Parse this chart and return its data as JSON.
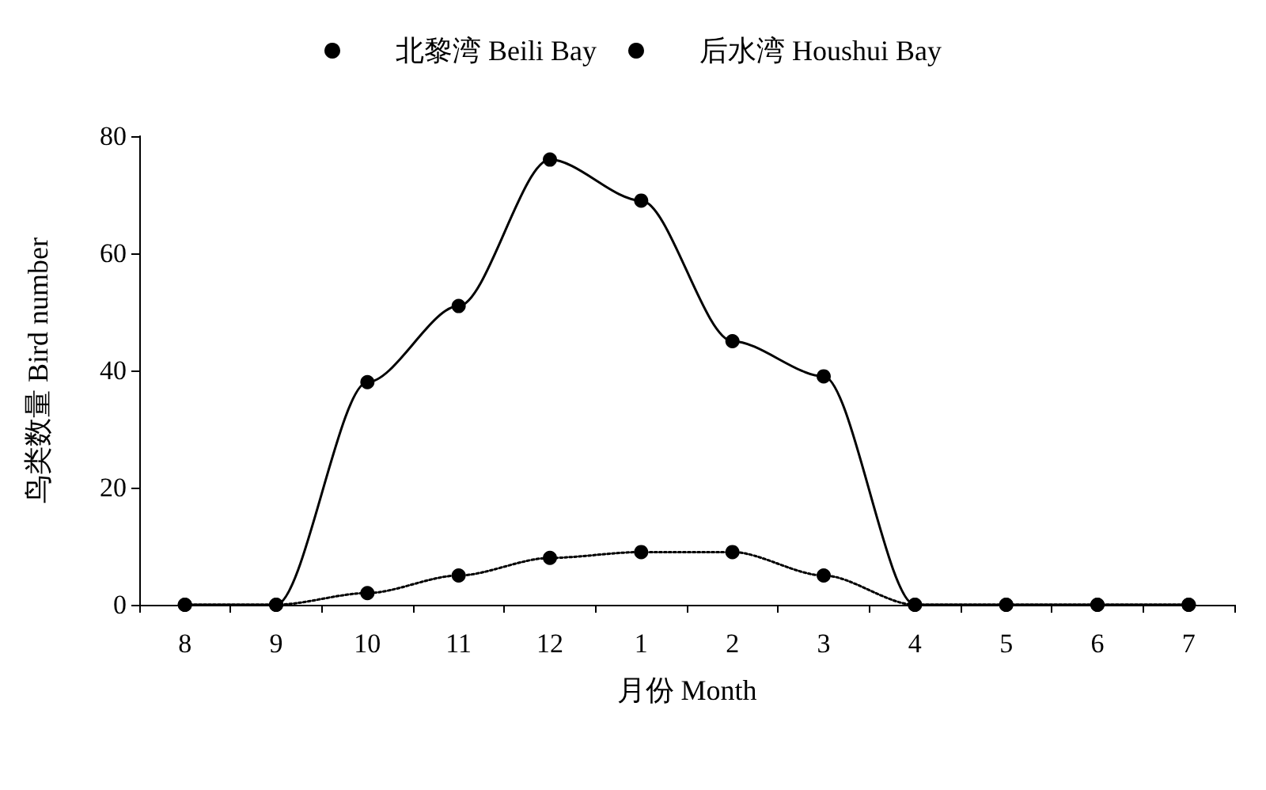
{
  "chart_data": {
    "type": "line",
    "xlabel": "月份 Month",
    "ylabel": "鸟类数量 Bird number",
    "categories": [
      "8",
      "9",
      "10",
      "11",
      "12",
      "1",
      "2",
      "3",
      "4",
      "5",
      "6",
      "7"
    ],
    "series": [
      {
        "name": "北黎湾 Beili Bay",
        "color": "#000000",
        "line_style": "solid",
        "values": [
          0,
          0,
          38,
          51,
          76,
          69,
          45,
          39,
          0,
          0,
          0,
          0
        ]
      },
      {
        "name": "后水湾 Houshui Bay",
        "color": "#000000",
        "line_style": "dotted",
        "values": [
          0,
          0,
          2,
          5,
          8,
          9,
          9,
          5,
          0,
          0,
          0,
          0
        ]
      }
    ],
    "ylim": [
      0,
      80
    ],
    "yticks": [
      0,
      20,
      40,
      60,
      80
    ],
    "grid": false,
    "legend": "top",
    "marker": "circle"
  }
}
